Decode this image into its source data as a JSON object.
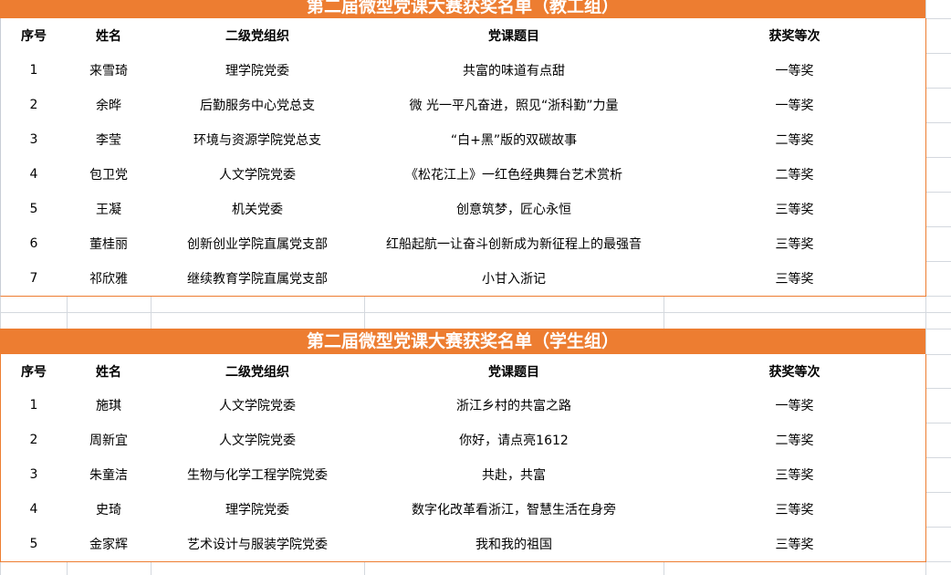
{
  "theme": {
    "accent": "#ED7D31",
    "gridline": "#D4D8DE",
    "header_divider": "#C8CDD6"
  },
  "columns": [
    "序号",
    "姓名",
    "二级党组织",
    "党课题目",
    "获奖等次"
  ],
  "tables": [
    {
      "title": "第二届微型党课大赛获奖名单（教工组）",
      "rows": [
        [
          "1",
          "来雪琦",
          "理学院党委",
          "共富的味道有点甜",
          "一等奖"
        ],
        [
          "2",
          "余晔",
          "后勤服务中心党总支",
          "微 光一平凡奋进，照见“浙科勤”力量",
          "一等奖"
        ],
        [
          "3",
          "李莹",
          "环境与资源学院党总支",
          "“白+黑”版的双碳故事",
          "二等奖"
        ],
        [
          "4",
          "包卫党",
          "人文学院党委",
          "《松花江上》一红色经典舞台艺术赏析",
          "二等奖"
        ],
        [
          "5",
          "王凝",
          "机关党委",
          "创意筑梦，匠心永恒",
          "三等奖"
        ],
        [
          "6",
          "董桂丽",
          "创新创业学院直属党支部",
          "红船起航一让奋斗创新成为新征程上的最强音",
          "三等奖"
        ],
        [
          "7",
          "祁欣雅",
          "继续教育学院直属党支部",
          "小甘入浙记",
          "三等奖"
        ]
      ]
    },
    {
      "title": "第二届微型党课大赛获奖名单（学生组）",
      "rows": [
        [
          "1",
          "施琪",
          "人文学院党委",
          "浙江乡村的共富之路",
          "一等奖"
        ],
        [
          "2",
          "周新宜",
          "人文学院党委",
          "你好，请点亮1612",
          "二等奖"
        ],
        [
          "3",
          "朱童洁",
          "生物与化学工程学院党委",
          "共赴，共富",
          "三等奖"
        ],
        [
          "4",
          "史琦",
          "理学院党委",
          "数字化改革看浙江，智慧生活在身旁",
          "三等奖"
        ],
        [
          "5",
          "金家辉",
          "艺术设计与服装学院党委",
          "我和我的祖国",
          "三等奖"
        ]
      ]
    }
  ]
}
